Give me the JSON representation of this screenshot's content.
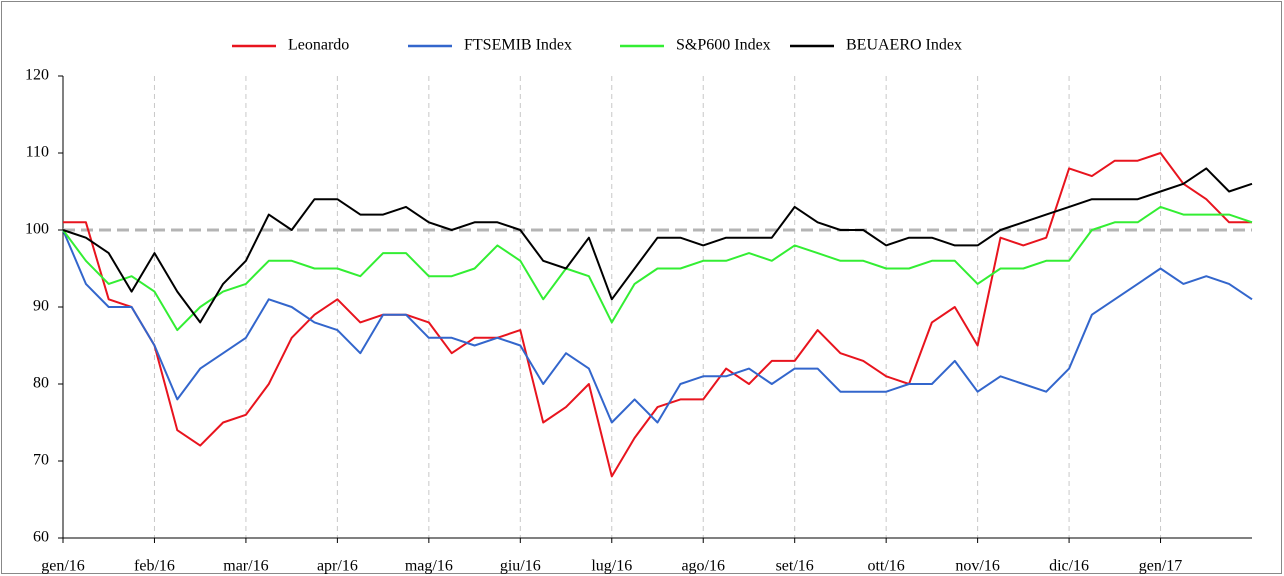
{
  "chart_data": {
    "type": "line",
    "categories": [
      "gen/16",
      null,
      null,
      null,
      "feb/16",
      null,
      null,
      null,
      "mar/16",
      null,
      null,
      null,
      "apr/16",
      null,
      null,
      null,
      "mag/16",
      null,
      null,
      null,
      "giu/16",
      null,
      null,
      null,
      "lug/16",
      null,
      null,
      null,
      "ago/16",
      null,
      null,
      null,
      "set/16",
      null,
      null,
      null,
      "ott/16",
      null,
      null,
      null,
      "nov/16",
      null,
      null,
      null,
      "dic/16",
      null,
      null,
      null,
      "gen/17",
      null,
      null,
      null,
      null
    ],
    "series": [
      {
        "name": "Leonardo",
        "color": "#e8141e",
        "values": [
          101,
          101,
          91,
          90,
          85,
          74,
          72,
          75,
          76,
          80,
          86,
          89,
          91,
          88,
          89,
          89,
          88,
          84,
          86,
          86,
          87,
          75,
          77,
          80,
          68,
          73,
          77,
          78,
          78,
          82,
          80,
          83,
          83,
          87,
          84,
          83,
          81,
          80,
          88,
          90,
          85,
          99,
          98,
          99,
          108,
          107,
          109,
          109,
          110,
          106,
          104,
          101,
          101
        ]
      },
      {
        "name": "FTSEMIB Index",
        "color": "#3366cc",
        "values": [
          100,
          93,
          90,
          90,
          85,
          78,
          82,
          84,
          86,
          91,
          90,
          88,
          87,
          84,
          89,
          89,
          86,
          86,
          85,
          86,
          85,
          80,
          84,
          82,
          75,
          78,
          75,
          80,
          81,
          81,
          82,
          80,
          82,
          82,
          79,
          79,
          79,
          80,
          80,
          83,
          79,
          81,
          80,
          79,
          82,
          89,
          91,
          93,
          95,
          93,
          94,
          93,
          91
        ]
      },
      {
        "name": "S&P600 Index",
        "color": "#33ee33",
        "values": [
          100,
          96,
          93,
          94,
          92,
          87,
          90,
          92,
          93,
          96,
          96,
          95,
          95,
          94,
          97,
          97,
          94,
          94,
          95,
          98,
          96,
          91,
          95,
          94,
          88,
          93,
          95,
          95,
          96,
          96,
          97,
          96,
          98,
          97,
          96,
          96,
          95,
          95,
          96,
          96,
          93,
          95,
          95,
          96,
          96,
          100,
          101,
          101,
          103,
          102,
          102,
          102,
          101
        ]
      },
      {
        "name": "BEUAERO Index",
        "color": "#000000",
        "values": [
          100,
          99,
          97,
          92,
          97,
          92,
          88,
          93,
          96,
          102,
          100,
          104,
          104,
          102,
          102,
          103,
          101,
          100,
          101,
          101,
          100,
          96,
          95,
          99,
          91,
          95,
          99,
          99,
          98,
          99,
          99,
          99,
          103,
          101,
          100,
          100,
          98,
          99,
          99,
          98,
          98,
          100,
          101,
          102,
          103,
          104,
          104,
          104,
          105,
          106,
          108,
          105,
          106
        ]
      }
    ],
    "ylim": [
      60,
      120
    ],
    "yticks": [
      60,
      70,
      80,
      90,
      100,
      110,
      120
    ],
    "reference_line": 100,
    "grid": true
  }
}
